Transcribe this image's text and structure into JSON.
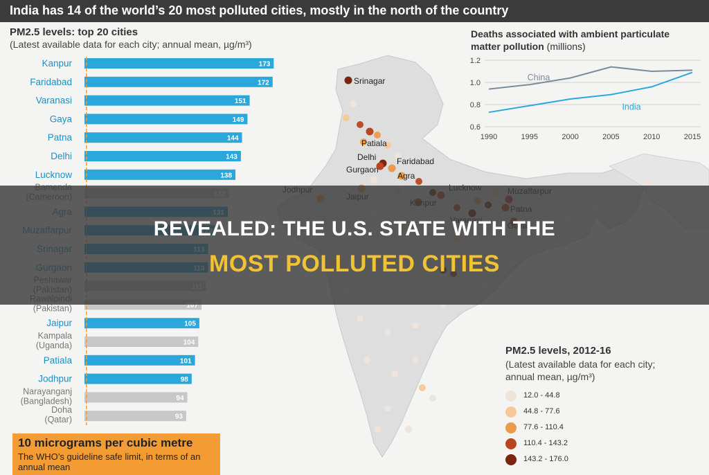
{
  "banner": "India has 14 of the world’s 20 most polluted cities, mostly in the north of the country",
  "chart_data": [
    {
      "type": "bar",
      "title": "PM2.5 levels: top 20 cities",
      "subtitle": "(Latest available data for each city; annual mean, µg/m³)",
      "categories": [
        "Kanpur",
        "Faridabad",
        "Varanasi",
        "Gaya",
        "Patna",
        "Delhi",
        "Lucknow",
        "Bamenda (Cameroon)",
        "Agra",
        "Muzaffarpur",
        "Srinagar",
        "Gurgaon",
        "Peshawar (Pakistan)",
        "Rawalpindi (Pakistan)",
        "Jaipur",
        "Kampala (Uganda)",
        "Patiala",
        "Jodhpur",
        "Narayanganj (Bangladesh)",
        "Doha (Qatar)"
      ],
      "values": [
        173,
        172,
        151,
        149,
        144,
        143,
        138,
        132,
        131,
        120,
        113,
        113,
        111,
        107,
        105,
        104,
        101,
        98,
        94,
        93
      ],
      "india": [
        true,
        true,
        true,
        true,
        true,
        true,
        true,
        false,
        true,
        true,
        true,
        true,
        false,
        false,
        true,
        false,
        true,
        true,
        false,
        false
      ],
      "xlim": [
        0,
        180
      ],
      "colors": {
        "india": "#2aa8dc",
        "other": "#c7c7c7"
      },
      "reference_line": {
        "value": 10,
        "label": "10 micrograms per cubic metre",
        "note": "The WHO’s guideline safe limit, in terms of an annual mean"
      }
    },
    {
      "type": "line",
      "title": "Deaths associated with ambient particulate matter pollution",
      "subtitle": "(millions)",
      "x": [
        1990,
        1995,
        2000,
        2005,
        2010,
        2015
      ],
      "series": [
        {
          "name": "China",
          "values": [
            0.94,
            0.98,
            1.04,
            1.14,
            1.1,
            1.11
          ],
          "color": "#7a8b99"
        },
        {
          "name": "India",
          "values": [
            0.73,
            0.79,
            0.85,
            0.89,
            0.96,
            1.09
          ],
          "color": "#2aa8dc"
        }
      ],
      "ylim": [
        0.6,
        1.2
      ],
      "yticks": [
        0.6,
        0.8,
        1.0,
        1.2
      ],
      "grid": true
    }
  ],
  "map": {
    "title": "PM2.5 levels, 2012-16",
    "subtitle": "(Latest available data for each city; annual mean, µg/m³)",
    "legend": [
      {
        "label": "12.0 - 44.8",
        "color": "#eee4da"
      },
      {
        "label": "44.8 - 77.6",
        "color": "#f6c99a"
      },
      {
        "label": "77.6 - 110.4",
        "color": "#ee9a4b"
      },
      {
        "label": "110.4 - 143.2",
        "color": "#b8471f"
      },
      {
        "label": "143.2 - 176.0",
        "color": "#7b2410"
      }
    ],
    "cities": [
      "Srinagar",
      "Patiala",
      "Delhi",
      "Faridabad",
      "Gurgaon",
      "Agra",
      "Jodhpur",
      "Jaipur",
      "Lucknow",
      "Kanpur",
      "Muzaffarpur",
      "Patna",
      "Varanasi",
      "Gaya"
    ]
  },
  "overlay": {
    "line1": "REVEALED: THE U.S. STATE WITH THE",
    "line2": "MOST POLLUTED CITIES"
  }
}
